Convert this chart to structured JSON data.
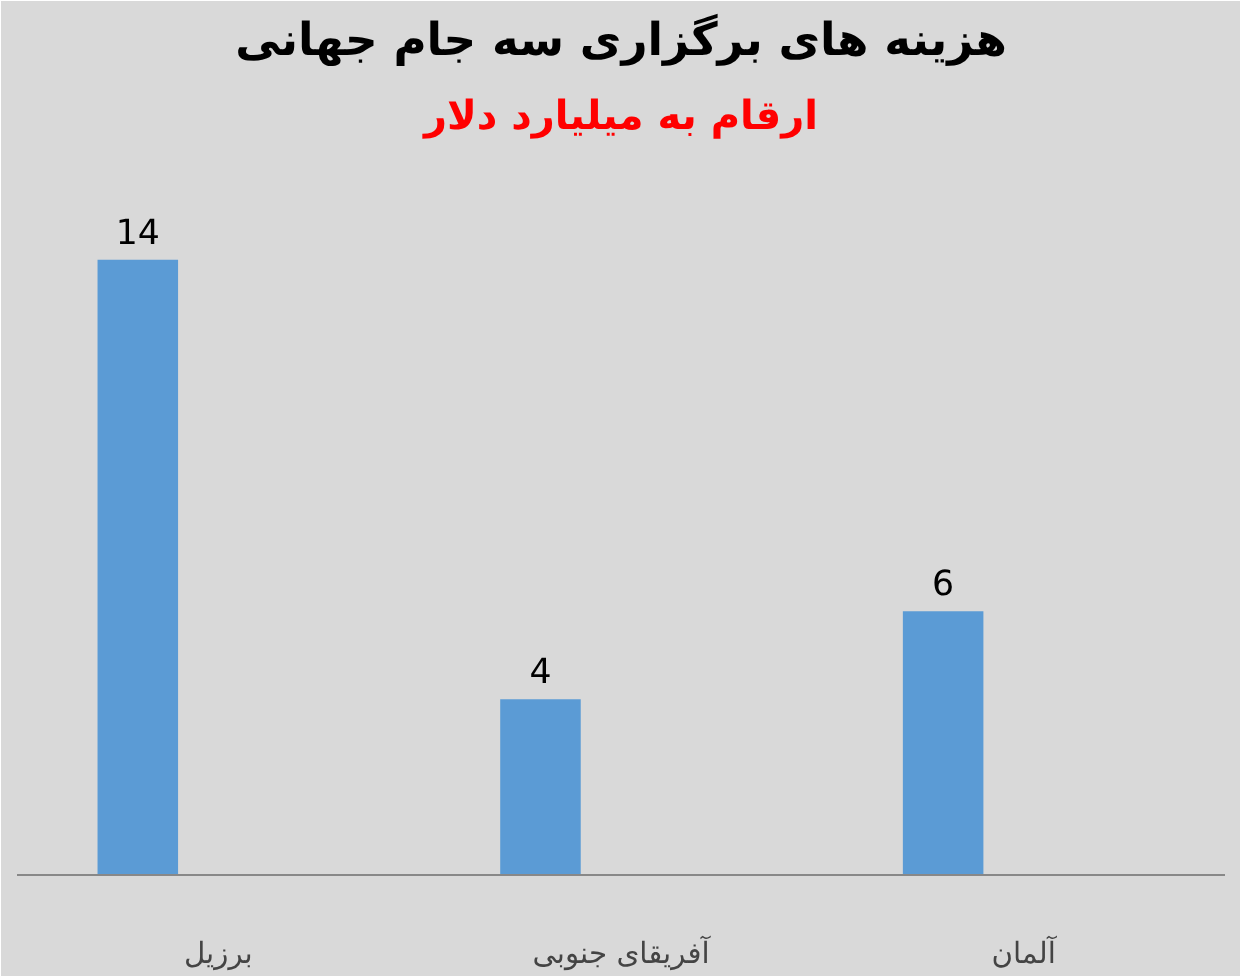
{
  "chart_data": {
    "type": "bar",
    "title": "هزینه های برگزاری سه جام جهانی",
    "subtitle": "ارقام به میلیارد دلار",
    "categories": [
      "برزیل",
      "آفریقای جنوبی",
      "آلمان"
    ],
    "values": [
      14,
      4,
      6
    ],
    "color": "#5b9bd5",
    "data_labels": true
  }
}
